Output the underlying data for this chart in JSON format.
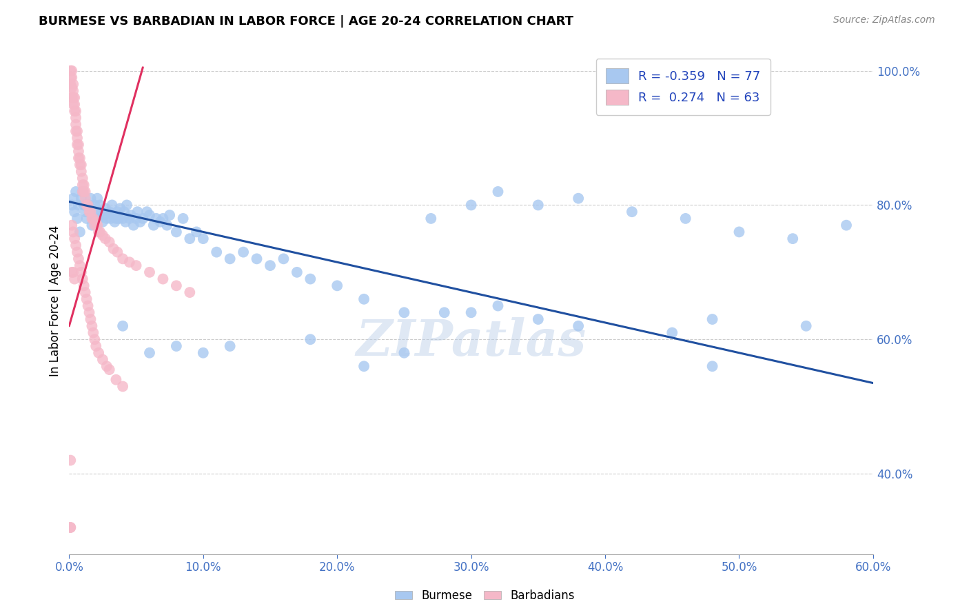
{
  "title": "BURMESE VS BARBADIAN IN LABOR FORCE | AGE 20-24 CORRELATION CHART",
  "source": "Source: ZipAtlas.com",
  "ylabel": "In Labor Force | Age 20-24",
  "xlim": [
    0.0,
    0.6
  ],
  "ylim": [
    0.28,
    1.035
  ],
  "x_ticks": [
    0.0,
    0.1,
    0.2,
    0.3,
    0.4,
    0.5,
    0.6
  ],
  "y_ticks": [
    0.4,
    0.6,
    0.8,
    1.0
  ],
  "legend_blue_R": "-0.359",
  "legend_blue_N": "77",
  "legend_pink_R": "0.274",
  "legend_pink_N": "63",
  "blue_color": "#a8c8f0",
  "pink_color": "#f5b8c8",
  "blue_line_color": "#2050a0",
  "pink_line_color": "#e03060",
  "watermark": "ZIPatlas",
  "burmese_x": [
    0.002,
    0.003,
    0.004,
    0.005,
    0.006,
    0.007,
    0.008,
    0.009,
    0.01,
    0.011,
    0.012,
    0.013,
    0.015,
    0.016,
    0.017,
    0.018,
    0.019,
    0.02,
    0.021,
    0.022,
    0.023,
    0.024,
    0.025,
    0.026,
    0.027,
    0.028,
    0.03,
    0.031,
    0.032,
    0.033,
    0.034,
    0.035,
    0.036,
    0.037,
    0.038,
    0.04,
    0.041,
    0.042,
    0.043,
    0.045,
    0.046,
    0.048,
    0.05,
    0.051,
    0.053,
    0.055,
    0.058,
    0.06,
    0.063,
    0.065,
    0.068,
    0.07,
    0.073,
    0.075,
    0.08,
    0.085,
    0.09,
    0.095,
    0.1,
    0.11,
    0.12,
    0.13,
    0.14,
    0.15,
    0.16,
    0.17,
    0.18,
    0.2,
    0.22,
    0.25,
    0.28,
    0.3,
    0.32,
    0.35,
    0.38,
    0.45,
    0.48
  ],
  "burmese_y": [
    0.8,
    0.81,
    0.79,
    0.82,
    0.78,
    0.8,
    0.76,
    0.81,
    0.82,
    0.8,
    0.79,
    0.78,
    0.8,
    0.81,
    0.77,
    0.78,
    0.8,
    0.79,
    0.81,
    0.78,
    0.8,
    0.79,
    0.775,
    0.785,
    0.795,
    0.78,
    0.79,
    0.78,
    0.8,
    0.785,
    0.775,
    0.78,
    0.79,
    0.78,
    0.795,
    0.78,
    0.79,
    0.775,
    0.8,
    0.78,
    0.785,
    0.77,
    0.78,
    0.79,
    0.775,
    0.78,
    0.79,
    0.785,
    0.77,
    0.78,
    0.775,
    0.78,
    0.77,
    0.785,
    0.76,
    0.78,
    0.75,
    0.76,
    0.75,
    0.73,
    0.72,
    0.73,
    0.72,
    0.71,
    0.72,
    0.7,
    0.69,
    0.68,
    0.66,
    0.64,
    0.64,
    0.64,
    0.65,
    0.63,
    0.62,
    0.61,
    0.56
  ],
  "burmese_x_extra": [
    0.27,
    0.3,
    0.32,
    0.35,
    0.38,
    0.42,
    0.46,
    0.5,
    0.54,
    0.58,
    0.25,
    0.18,
    0.22,
    0.12,
    0.1,
    0.08,
    0.06,
    0.04,
    0.55,
    0.48
  ],
  "burmese_y_extra": [
    0.78,
    0.8,
    0.82,
    0.8,
    0.81,
    0.79,
    0.78,
    0.76,
    0.75,
    0.77,
    0.58,
    0.6,
    0.56,
    0.59,
    0.58,
    0.59,
    0.58,
    0.62,
    0.62,
    0.63
  ],
  "barbadian_x": [
    0.001,
    0.001,
    0.001,
    0.002,
    0.002,
    0.002,
    0.002,
    0.003,
    0.003,
    0.003,
    0.003,
    0.004,
    0.004,
    0.004,
    0.005,
    0.005,
    0.005,
    0.005,
    0.006,
    0.006,
    0.006,
    0.007,
    0.007,
    0.007,
    0.008,
    0.008,
    0.009,
    0.009,
    0.01,
    0.01,
    0.01,
    0.011,
    0.011,
    0.012,
    0.012,
    0.013,
    0.014,
    0.015,
    0.016,
    0.017,
    0.018,
    0.019,
    0.02,
    0.021,
    0.022,
    0.023,
    0.025,
    0.027,
    0.03,
    0.033,
    0.036,
    0.04,
    0.045,
    0.05,
    0.06,
    0.07,
    0.08,
    0.09,
    0.003,
    0.004,
    0.002,
    0.001,
    0.001
  ],
  "barbadian_y": [
    1.0,
    0.99,
    0.98,
    1.0,
    0.99,
    0.975,
    0.96,
    0.98,
    0.97,
    0.96,
    0.95,
    0.96,
    0.95,
    0.94,
    0.94,
    0.93,
    0.92,
    0.91,
    0.91,
    0.9,
    0.89,
    0.89,
    0.88,
    0.87,
    0.87,
    0.86,
    0.86,
    0.85,
    0.84,
    0.83,
    0.82,
    0.83,
    0.82,
    0.82,
    0.81,
    0.8,
    0.8,
    0.79,
    0.79,
    0.78,
    0.78,
    0.77,
    0.775,
    0.77,
    0.76,
    0.76,
    0.755,
    0.75,
    0.745,
    0.735,
    0.73,
    0.72,
    0.715,
    0.71,
    0.7,
    0.69,
    0.68,
    0.67,
    0.7,
    0.69,
    0.7,
    0.42,
    0.32
  ],
  "barbadian_x_low": [
    0.002,
    0.003,
    0.004,
    0.005,
    0.006,
    0.007,
    0.008,
    0.009,
    0.01,
    0.011,
    0.012,
    0.013,
    0.014,
    0.015,
    0.016,
    0.017,
    0.018,
    0.019,
    0.02,
    0.022,
    0.025,
    0.028,
    0.03,
    0.035,
    0.04,
    0.001
  ],
  "barbadian_y_low": [
    0.77,
    0.76,
    0.75,
    0.74,
    0.73,
    0.72,
    0.71,
    0.7,
    0.69,
    0.68,
    0.67,
    0.66,
    0.65,
    0.64,
    0.63,
    0.62,
    0.61,
    0.6,
    0.59,
    0.58,
    0.57,
    0.56,
    0.555,
    0.54,
    0.53,
    0.32
  ],
  "pink_trend_x": [
    0.0,
    0.055
  ],
  "pink_trend_y": [
    0.62,
    1.005
  ],
  "blue_trend_x": [
    0.0,
    0.6
  ],
  "blue_trend_y": [
    0.805,
    0.535
  ]
}
